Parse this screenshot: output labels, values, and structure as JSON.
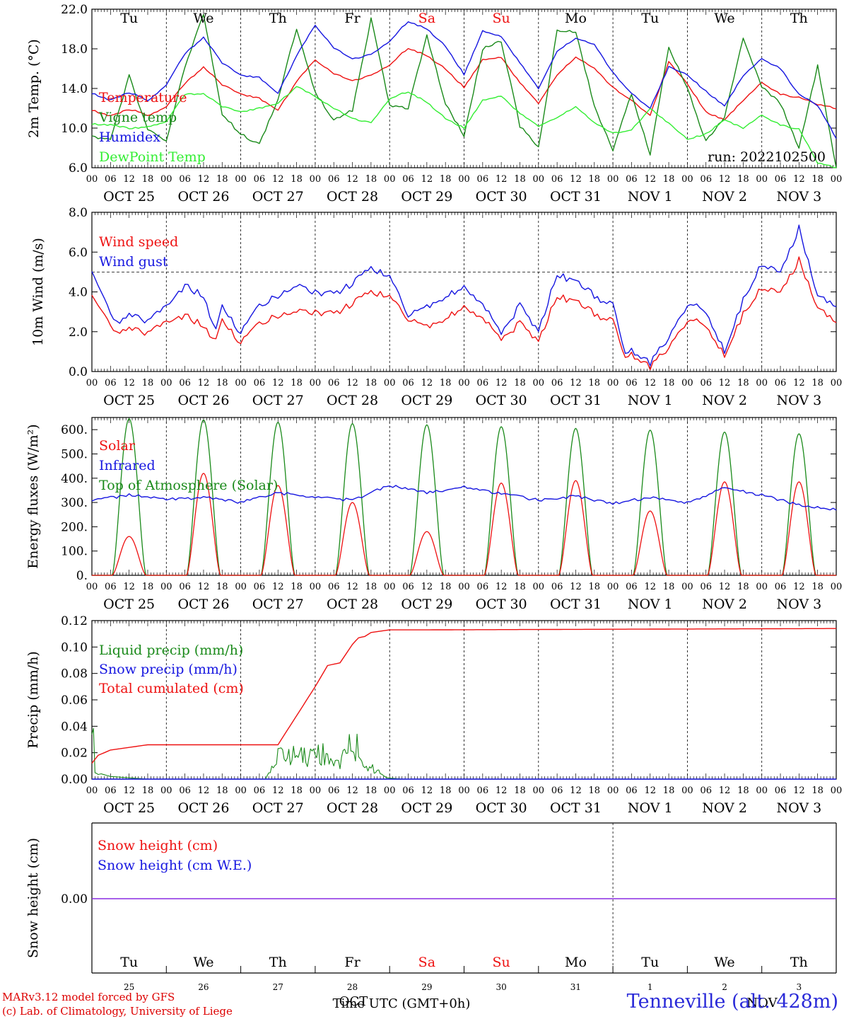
{
  "footer": {
    "credit1": "MARv3.12 model forced by GFS",
    "credit2": "(c) Lab. of Climatology, University of Liege",
    "station": "Tenneville (alt. 428m)",
    "time_label": "Time UTC (GMT+0h)",
    "month_label": "OCT",
    "month_label2": "NOV"
  },
  "colors": {
    "red": "#ee1111",
    "darkgreen": "#1a8a1a",
    "blue": "#1616e0",
    "lightgreen": "#33ee33",
    "purple": "#8a2be2"
  },
  "axis": {
    "hour_ticks": [
      "00",
      "06",
      "12",
      "18"
    ],
    "day_labels": [
      "OCT 25",
      "OCT 26",
      "OCT 27",
      "OCT 28",
      "OCT 29",
      "OCT 30",
      "OCT 31",
      "NOV 1",
      "NOV 2",
      "NOV 3"
    ],
    "weekdays": [
      "Tu",
      "We",
      "Th",
      "Fr",
      "Sa",
      "Su",
      "Mo",
      "Tu",
      "We",
      "Th"
    ],
    "weekend_days": [
      "Sa",
      "Su"
    ],
    "day_numbers": [
      "25",
      "26",
      "27",
      "28",
      "29",
      "30",
      "31",
      "1",
      "2",
      "3"
    ]
  },
  "chart_data": [
    {
      "type": "line",
      "ylabel": "2m Temp. (°C)",
      "ylim": [
        6,
        22
      ],
      "yticks": [
        "6.0",
        "10.0",
        "14.0",
        "18.0",
        "22.0"
      ],
      "annotation": "run: 2022102500",
      "x_unit": "hours since 2022-10-25 00 UTC",
      "series": [
        {
          "name": "Temperature",
          "color": "red",
          "x": [
            0,
            6,
            12,
            15,
            18,
            24,
            30,
            36,
            42,
            48,
            54,
            60,
            66,
            72,
            78,
            84,
            90,
            96,
            102,
            108,
            114,
            120,
            126,
            132,
            138,
            144,
            150,
            156,
            162,
            168,
            174,
            180,
            186,
            192,
            198,
            204,
            210,
            216,
            222,
            228,
            234,
            240
          ],
          "y": [
            11.8,
            11.2,
            11.9,
            11.7,
            11.2,
            12.2,
            14.5,
            16.2,
            14.4,
            13.4,
            13.0,
            11.8,
            14.7,
            16.9,
            15.5,
            14.8,
            15.3,
            16.4,
            18.1,
            17.3,
            16.0,
            14.1,
            16.9,
            17.1,
            14.6,
            12.5,
            15.3,
            17.2,
            16.0,
            14.1,
            12.8,
            11.3,
            16.7,
            14.5,
            11.6,
            10.8,
            12.8,
            14.6,
            13.4,
            13.1,
            12.4,
            12.0
          ]
        },
        {
          "name": "Vigne temp",
          "color": "darkgreen",
          "x": [
            0,
            6,
            12,
            18,
            24,
            30,
            36,
            42,
            48,
            54,
            60,
            66,
            72,
            78,
            84,
            90,
            96,
            102,
            108,
            114,
            120,
            126,
            132,
            138,
            144,
            150,
            156,
            162,
            168,
            174,
            180,
            186,
            192,
            198,
            204,
            210,
            216,
            222,
            228,
            234,
            240
          ],
          "y": [
            9.2,
            8.8,
            15.3,
            9.8,
            8.7,
            16.2,
            21.5,
            11.4,
            9.4,
            8.3,
            12.9,
            20.1,
            13.6,
            10.8,
            11.8,
            21.0,
            12.3,
            12.0,
            19.4,
            12.5,
            9.2,
            18.0,
            18.8,
            10.2,
            8.0,
            19.8,
            19.8,
            12.2,
            7.8,
            13.5,
            7.3,
            18.2,
            14.0,
            8.6,
            11.2,
            19.1,
            14.2,
            12.5,
            8.0,
            16.3,
            6.0
          ]
        },
        {
          "name": "Humidex",
          "color": "blue",
          "x": [
            0,
            6,
            12,
            15,
            18,
            24,
            30,
            36,
            42,
            48,
            54,
            60,
            66,
            72,
            78,
            84,
            90,
            96,
            102,
            108,
            114,
            120,
            126,
            132,
            138,
            144,
            150,
            156,
            162,
            168,
            174,
            180,
            186,
            192,
            198,
            204,
            210,
            216,
            222,
            228,
            234,
            240
          ],
          "y": [
            13.5,
            12.8,
            13.6,
            13.3,
            12.7,
            14.4,
            17.5,
            19.2,
            16.6,
            15.3,
            15.1,
            13.5,
            17.3,
            20.4,
            18.1,
            17.0,
            17.4,
            18.8,
            20.8,
            20.0,
            18.3,
            15.4,
            19.8,
            19.2,
            16.6,
            14.0,
            17.7,
            19.1,
            18.4,
            15.6,
            13.5,
            12.0,
            16.2,
            15.4,
            13.7,
            12.2,
            15.3,
            17.0,
            16.0,
            13.4,
            12.3,
            9.0
          ]
        },
        {
          "name": "DewPoint Temp",
          "color": "lightgreen",
          "x": [
            0,
            6,
            12,
            18,
            24,
            30,
            36,
            42,
            48,
            54,
            60,
            66,
            72,
            78,
            84,
            90,
            96,
            102,
            108,
            114,
            120,
            126,
            132,
            138,
            144,
            150,
            156,
            162,
            168,
            174,
            180,
            186,
            192,
            198,
            204,
            210,
            216,
            222,
            228,
            234,
            240
          ],
          "y": [
            10.4,
            10.3,
            10.0,
            10.1,
            10.7,
            13.4,
            13.5,
            12.2,
            11.6,
            12.0,
            12.5,
            14.2,
            13.2,
            12.0,
            11.0,
            10.5,
            13.0,
            13.7,
            12.6,
            11.0,
            10.0,
            12.8,
            13.2,
            11.5,
            10.2,
            11.0,
            12.2,
            10.5,
            9.5,
            9.8,
            12.0,
            10.5,
            8.9,
            9.4,
            10.8,
            10.0,
            11.3,
            10.3,
            9.9,
            6.5,
            6.0
          ]
        }
      ]
    },
    {
      "type": "line",
      "ylabel": "10m Wind (m/s)",
      "ylim": [
        0,
        8
      ],
      "yticks": [
        "0.0",
        "2.0",
        "4.0",
        "6.0",
        "8.0"
      ],
      "reference_line": 5,
      "series": [
        {
          "name": "Wind speed",
          "color": "red",
          "x": [
            0,
            6,
            9,
            12,
            18,
            24,
            30,
            36,
            40,
            42,
            48,
            54,
            60,
            66,
            72,
            78,
            84,
            90,
            96,
            102,
            108,
            114,
            120,
            126,
            132,
            138,
            144,
            150,
            156,
            162,
            168,
            172,
            174,
            180,
            186,
            192,
            198,
            204,
            210,
            216,
            222,
            228,
            234,
            240
          ],
          "y": [
            3.8,
            2.4,
            1.8,
            2.3,
            1.9,
            2.4,
            2.8,
            2.3,
            1.5,
            2.5,
            1.4,
            2.4,
            2.8,
            3.1,
            3.0,
            2.9,
            3.4,
            4.0,
            3.8,
            2.6,
            2.2,
            2.7,
            3.2,
            2.8,
            1.6,
            2.4,
            1.5,
            3.8,
            3.5,
            2.9,
            2.5,
            0.6,
            0.8,
            0.2,
            1.2,
            2.6,
            2.4,
            0.8,
            2.9,
            4.2,
            4.0,
            5.6,
            3.2,
            2.6
          ]
        },
        {
          "name": "Wind gust",
          "color": "blue",
          "x": [
            0,
            6,
            9,
            12,
            18,
            24,
            30,
            36,
            40,
            42,
            48,
            54,
            60,
            66,
            72,
            78,
            84,
            90,
            96,
            102,
            108,
            114,
            120,
            126,
            132,
            138,
            144,
            150,
            156,
            162,
            168,
            172,
            174,
            180,
            186,
            192,
            198,
            204,
            210,
            216,
            222,
            228,
            234,
            240
          ],
          "y": [
            5.0,
            3.0,
            2.3,
            3.0,
            2.5,
            3.2,
            4.3,
            3.8,
            2.0,
            3.2,
            1.9,
            3.3,
            3.8,
            4.4,
            4.0,
            3.9,
            4.4,
            5.2,
            4.8,
            2.8,
            3.2,
            3.8,
            4.2,
            3.5,
            1.9,
            3.3,
            2.0,
            4.9,
            4.5,
            3.8,
            3.3,
            0.8,
            1.0,
            0.4,
            1.7,
            3.4,
            3.1,
            1.0,
            3.6,
            5.4,
            5.0,
            7.2,
            3.8,
            3.4
          ]
        }
      ]
    },
    {
      "type": "line",
      "ylabel": "Energy fluxes (W/m²)",
      "ylim": [
        0,
        650
      ],
      "yticks": [
        "0.",
        "100.",
        "200.",
        "300.",
        "400.",
        "500.",
        "600."
      ],
      "series": [
        {
          "name": "Solar",
          "color": "red",
          "peak_hour": 12,
          "daylight_hours": [
            6.5,
            17.5
          ],
          "daily_peak": [
            160,
            420,
            370,
            300,
            180,
            380,
            390,
            265,
            385,
            385
          ]
        },
        {
          "name": "Infrared",
          "color": "blue",
          "x": [
            0,
            12,
            24,
            36,
            48,
            60,
            72,
            84,
            96,
            108,
            120,
            132,
            144,
            156,
            168,
            180,
            192,
            204,
            216,
            228,
            240
          ],
          "y": [
            310,
            330,
            315,
            320,
            300,
            340,
            320,
            310,
            370,
            340,
            365,
            335,
            310,
            325,
            295,
            320,
            300,
            360,
            330,
            290,
            272
          ]
        },
        {
          "name": "Top of Atmosphere (Solar)",
          "color": "darkgreen",
          "peak_hour": 12,
          "daylight_hours": [
            6.5,
            17.5
          ],
          "daily_peak": [
            645,
            640,
            630,
            625,
            620,
            612,
            605,
            598,
            590,
            583
          ]
        }
      ]
    },
    {
      "type": "line",
      "ylabel": "Precip (mm/h)",
      "ylim": [
        0,
        0.12
      ],
      "yticks": [
        "0.00",
        "0.02",
        "0.04",
        "0.06",
        "0.08",
        "0.10",
        "0.12"
      ],
      "series": [
        {
          "name": "Liquid precip (mm/h)",
          "color": "darkgreen",
          "x": [
            0,
            1,
            3,
            6,
            12,
            18,
            56,
            60,
            66,
            72,
            74,
            77,
            80,
            84,
            86,
            88,
            91,
            95,
            100,
            240
          ],
          "y": [
            0.055,
            0.005,
            0.004,
            0.002,
            0.001,
            0.0,
            0.0,
            0.02,
            0.02,
            0.02,
            0.022,
            0.014,
            0.012,
            0.03,
            0.025,
            0.01,
            0.008,
            0.001,
            0.0,
            0.0
          ]
        },
        {
          "name": "Snow precip (mm/h)",
          "color": "blue",
          "x": [
            0,
            240
          ],
          "y": [
            0.0,
            0.0
          ]
        },
        {
          "name": "Total cumulated (cm)",
          "color": "red",
          "x": [
            0,
            2,
            6,
            12,
            18,
            60,
            66,
            72,
            76,
            80,
            84,
            86,
            88,
            90,
            96,
            108,
            240
          ],
          "y": [
            0.012,
            0.018,
            0.022,
            0.024,
            0.026,
            0.026,
            0.048,
            0.07,
            0.086,
            0.088,
            0.102,
            0.107,
            0.108,
            0.111,
            0.113,
            0.113,
            0.114
          ]
        }
      ]
    },
    {
      "type": "line",
      "ylabel": "Snow height (cm)",
      "yticks": [
        "0.00"
      ],
      "series": [
        {
          "name": "Snow height (cm)",
          "color": "red",
          "x": [
            0,
            240
          ],
          "y": [
            0,
            0
          ]
        },
        {
          "name": "Snow height (cm W.E.)",
          "color": "blue",
          "x": [
            0,
            240
          ],
          "y": [
            0,
            0
          ]
        }
      ]
    }
  ]
}
